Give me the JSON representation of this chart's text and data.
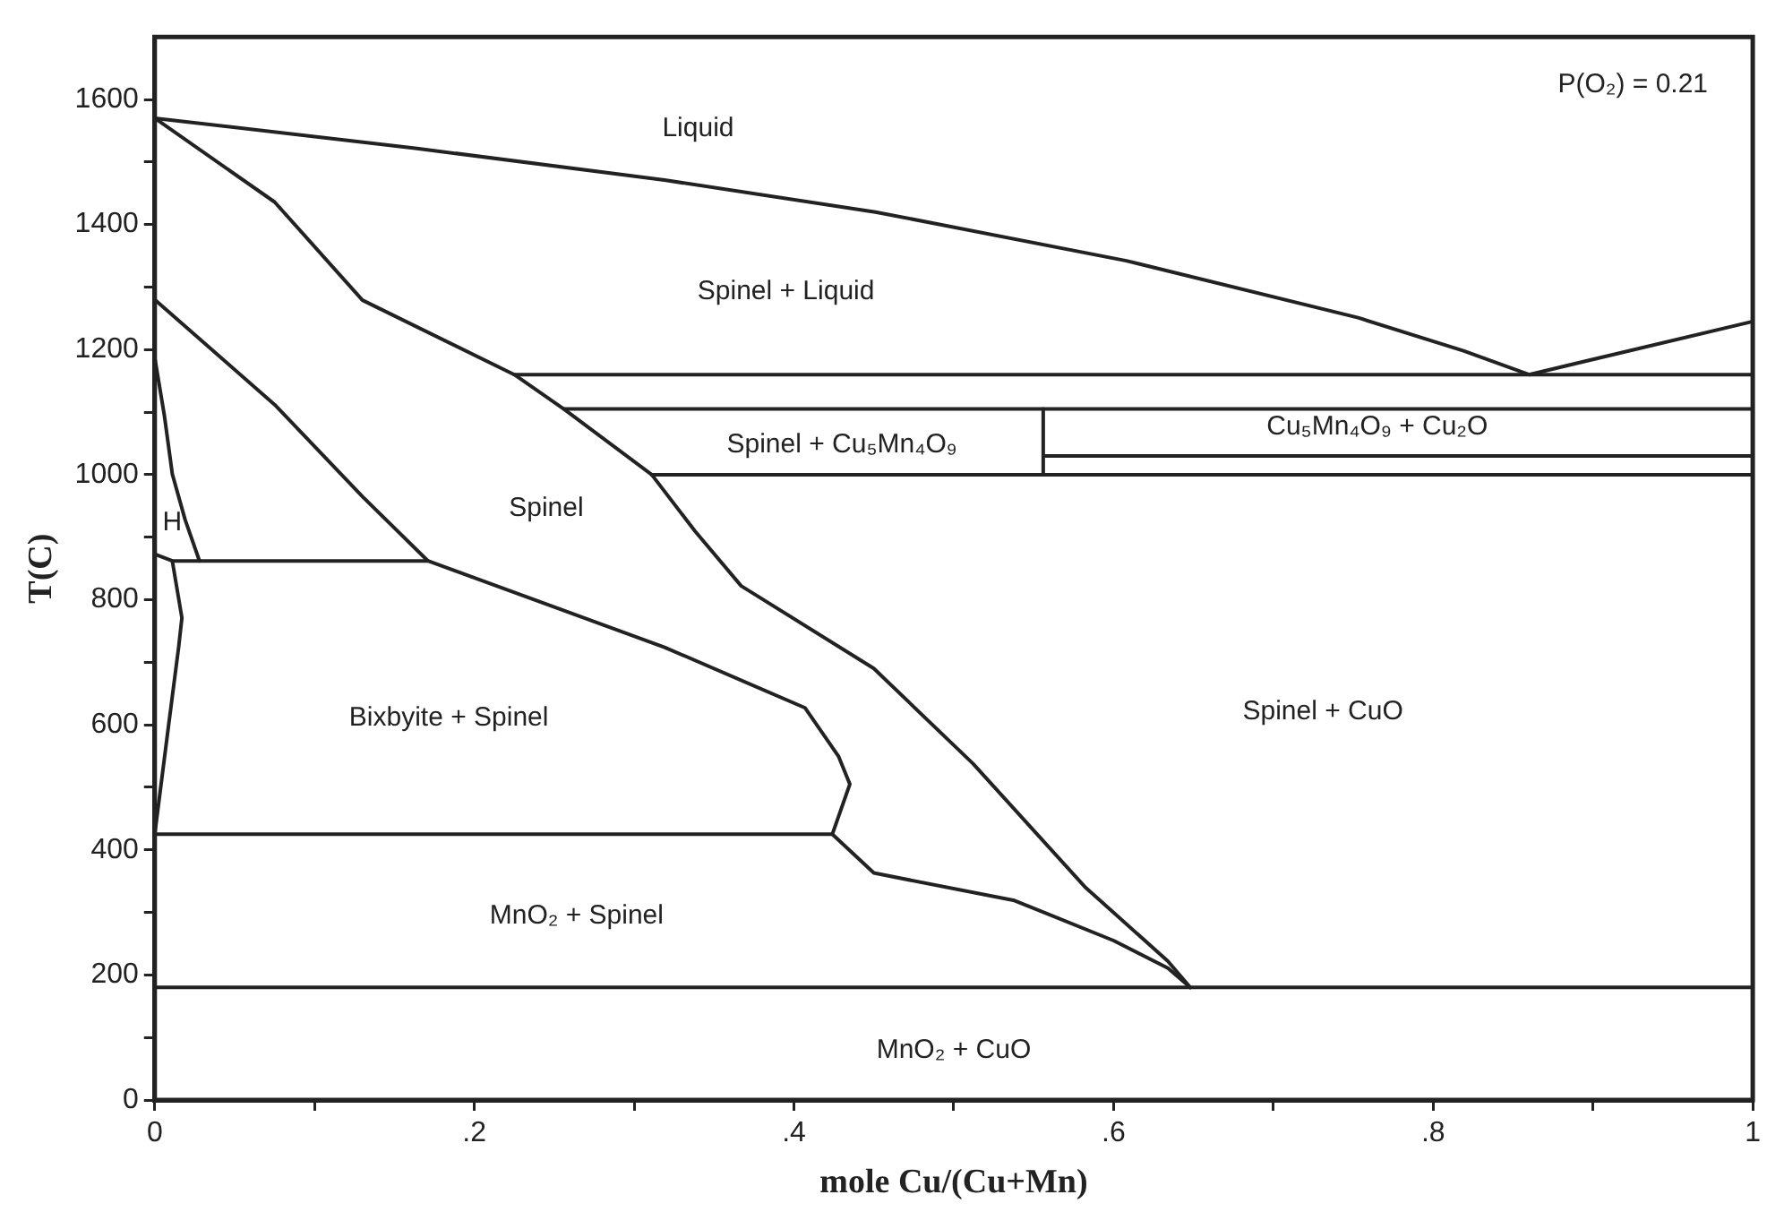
{
  "chart_data": {
    "type": "line",
    "xlabel": "mole Cu/(Cu+Mn)",
    "ylabel": "T(C)",
    "xlim": [
      0,
      1
    ],
    "ylim": [
      0,
      1700
    ],
    "xticks": [
      0,
      {
        "value": 0.1,
        "label": null
      },
      {
        "value": 0.2,
        "label": ".2"
      },
      {
        "value": 0.3,
        "label": null
      },
      {
        "value": 0.4,
        "label": ".4"
      },
      {
        "value": 0.5,
        "label": null
      },
      {
        "value": 0.6,
        "label": ".6"
      },
      {
        "value": 0.7,
        "label": null
      },
      {
        "value": 0.8,
        "label": ".8"
      },
      {
        "value": 0.9,
        "label": null
      },
      1
    ],
    "yticks": [
      0,
      {
        "value": 100,
        "label": null
      },
      200,
      {
        "value": 300,
        "label": null
      },
      400,
      {
        "value": 500,
        "label": null
      },
      600,
      {
        "value": 700,
        "label": null
      },
      800,
      {
        "value": 900,
        "label": null
      },
      1000,
      {
        "value": 1100,
        "label": null
      },
      1200,
      {
        "value": 1300,
        "label": null
      },
      1400,
      {
        "value": 1500,
        "label": null
      },
      1600
    ],
    "grid": false,
    "legend": false,
    "marker": "none",
    "line_style": "solid",
    "series": [
      {
        "color": "#222222",
        "x": [
          0,
          0.163,
          0.319,
          0.451,
          0.608,
          0.753,
          0.819,
          0.86,
          1
        ],
        "values": [
          1570,
          1522,
          1471,
          1420,
          1342,
          1251,
          1198,
          1160,
          1245
        ]
      },
      {
        "color": "#222222",
        "x": [
          0,
          0.075,
          0.13,
          0.225,
          0.256,
          0.311,
          0.338,
          0.367,
          0.45,
          0.512,
          0.582,
          0.634,
          0.648
        ],
        "values": [
          1570,
          1436,
          1279,
          1160,
          1105,
          1000,
          910,
          822,
          690,
          538,
          341,
          222,
          180
        ]
      },
      {
        "color": "#222222",
        "x": [
          0,
          0.075,
          0.13,
          0.171,
          0.319,
          0.407,
          0.428,
          0.435,
          0.424
        ],
        "values": [
          1280,
          1112,
          965,
          862,
          724,
          627,
          549,
          505,
          425
        ]
      },
      {
        "color": "#222222",
        "x": [
          0,
          0.006,
          0.011,
          0.019,
          0.028
        ],
        "values": [
          1187,
          1095,
          1001,
          928,
          862
        ]
      },
      {
        "color": "#222222",
        "x": [
          0,
          0.011,
          0.028,
          0.171
        ],
        "values": [
          873,
          862,
          862,
          862
        ]
      },
      {
        "color": "#222222",
        "x": [
          0.011,
          0.017,
          0.015,
          0.008,
          0
        ],
        "values": [
          862,
          771,
          725,
          586,
          425
        ]
      },
      {
        "color": "#222222",
        "x": [
          0,
          0.424,
          0.45,
          0.538,
          0.6,
          0.634,
          0.648
        ],
        "values": [
          425,
          425,
          363,
          319,
          255,
          211,
          180
        ]
      },
      {
        "color": "#222222",
        "x": [
          0,
          1
        ],
        "values": [
          180,
          180
        ]
      },
      {
        "color": "#222222",
        "x": [
          0.225,
          1
        ],
        "values": [
          1160,
          1160
        ]
      },
      {
        "color": "#222222",
        "x": [
          0.256,
          1
        ],
        "values": [
          1105,
          1105
        ]
      },
      {
        "color": "#222222",
        "x": [
          0.311,
          1
        ],
        "values": [
          1000,
          1000
        ]
      },
      {
        "color": "#222222",
        "x": [
          0.556,
          1
        ],
        "values": [
          1030,
          1030
        ]
      },
      {
        "color": "#222222",
        "x": [
          0.556,
          0.556
        ],
        "values": [
          1000,
          1105
        ]
      }
    ],
    "annotations": [
      "P(O₂) = 0.21",
      "Liquid",
      "Spinel + Liquid",
      "Spinel + Cu₅Mn₄O₉",
      "Cu₅Mn₄O₉ + Cu₂O",
      "Spinel",
      "H",
      "Bixbyite + Spinel",
      "Spinel + CuO",
      "MnO₂ + Spinel",
      "MnO₂ + CuO"
    ]
  }
}
